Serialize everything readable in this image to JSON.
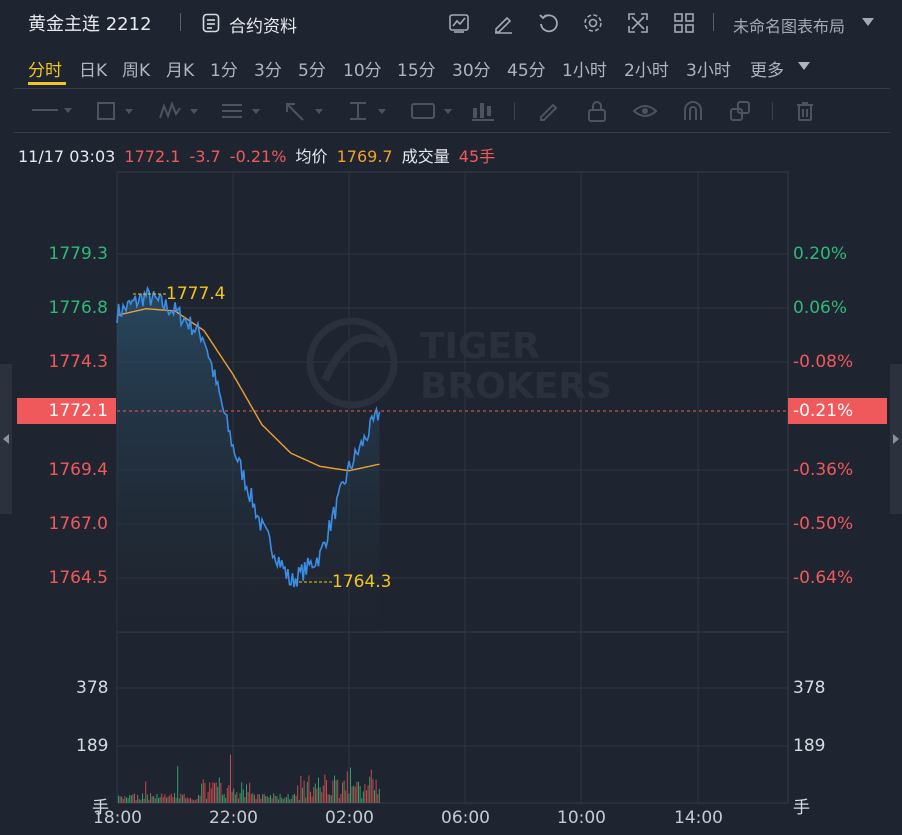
{
  "header": {
    "symbol": "黄金主连 2212",
    "contract_label": "合约资料",
    "layout_label": "未命名图表布局"
  },
  "periods": [
    "分时",
    "日K",
    "周K",
    "月K",
    "1分",
    "3分",
    "5分",
    "10分",
    "15分",
    "30分",
    "45分",
    "1小时",
    "2小时",
    "3小时",
    "更多"
  ],
  "active_period": "分时",
  "info": {
    "time": "11/17 03:03",
    "price": "1772.1",
    "change": "-3.7",
    "change_pct": "-0.21%",
    "avg_label": "均价",
    "avg_value": "1769.7",
    "volume_label": "成交量",
    "volume_value": "45手"
  },
  "colors": {
    "up": "#f0595c",
    "down": "#2fb87a",
    "price_line": "#3a8ee6",
    "avg_line": "#f0a030",
    "highlight": "#f5c518"
  },
  "axis": {
    "price_ticks": [
      "1779.3",
      "1776.8",
      "1774.3",
      "1772.1",
      "1769.4",
      "1767.0",
      "1764.5"
    ],
    "pct_ticks": [
      "0.20%",
      "0.06%",
      "-0.08%",
      "-0.21%",
      "-0.36%",
      "-0.50%",
      "-0.64%"
    ],
    "time_ticks": [
      "18:00",
      "22:00",
      "02:00",
      "06:00",
      "10:00",
      "14:00"
    ],
    "volume_ticks": [
      "378",
      "189"
    ],
    "volume_unit": "手"
  },
  "markers": {
    "high": "1777.4",
    "low": "1764.3"
  },
  "watermark": {
    "line1": "TIGER",
    "line2": "BROKERS"
  },
  "chart_data": {
    "type": "line",
    "series": [
      {
        "name": "",
        "x": [
          "18:00",
          "19:00",
          "20:00",
          "21:00",
          "22:00",
          "23:00",
          "00:00",
          "01:00",
          "02:00",
          "03:03"
        ],
        "values": [
          1776.6,
          1777.4,
          1776.7,
          1775.5,
          1770.5,
          1766.8,
          1764.3,
          1765.5,
          1769.5,
          1772.1
        ]
      },
      {
        "name": "均价",
        "x": [
          "18:00",
          "19:00",
          "20:00",
          "21:00",
          "22:00",
          "23:00",
          "00:00",
          "01:00",
          "02:00",
          "03:03"
        ],
        "values": [
          1776.5,
          1776.8,
          1776.7,
          1775.8,
          1773.8,
          1771.5,
          1770.2,
          1769.6,
          1769.4,
          1769.7
        ]
      }
    ],
    "ylim": [
      1764.5,
      1779.3
    ],
    "volume_ylim": [
      0,
      378
    ]
  }
}
